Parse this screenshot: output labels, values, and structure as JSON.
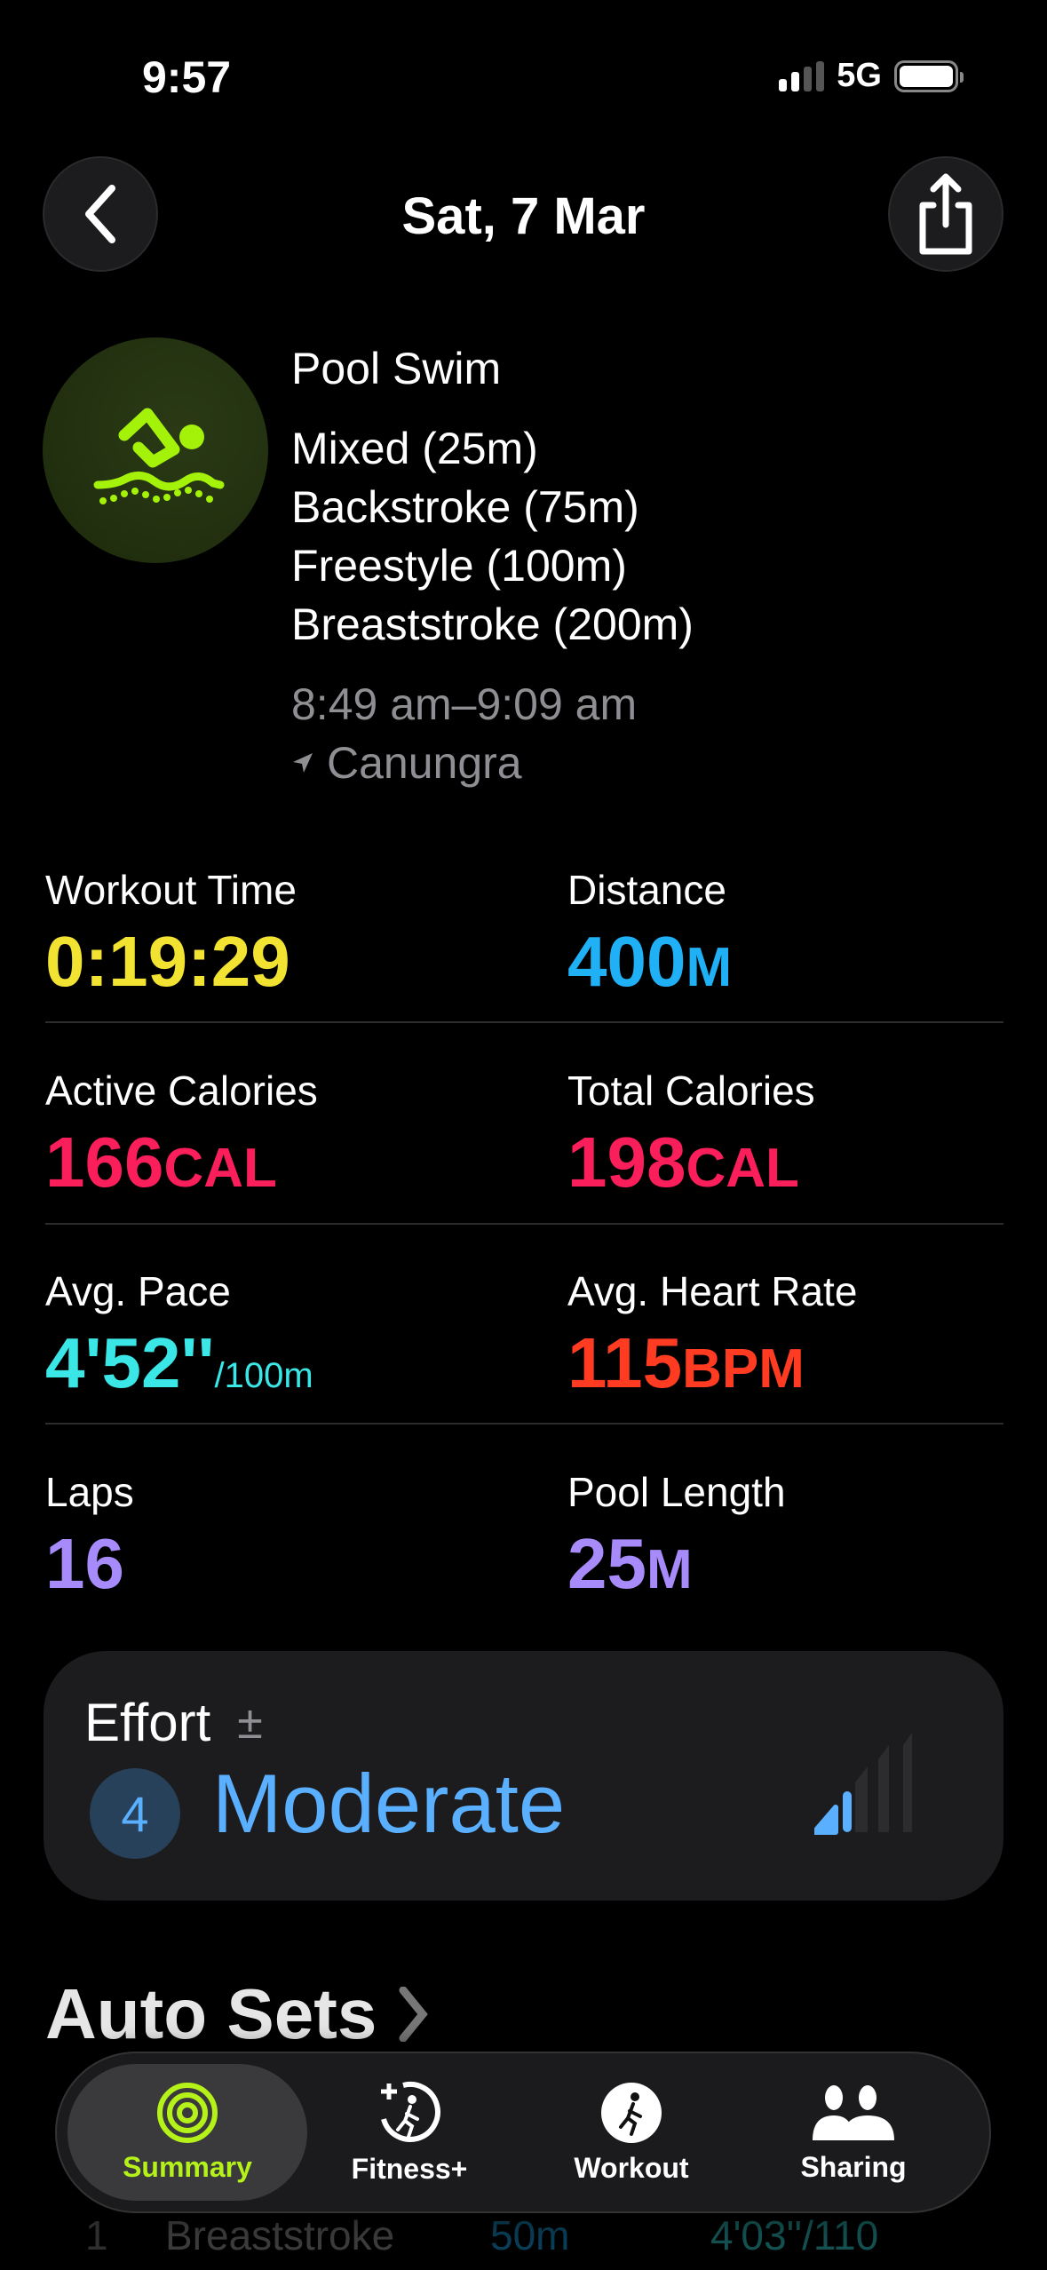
{
  "status_bar": {
    "time": "9:57",
    "network": "5G"
  },
  "header": {
    "title": "Sat, 7 Mar",
    "back_icon": "chevron-left-icon",
    "share_icon": "share-icon"
  },
  "workout": {
    "type": "Pool Swim",
    "icon": "pool-swim-icon",
    "strokes": [
      "Mixed (25m)",
      "Backstroke (75m)",
      "Freestyle (100m)",
      "Breaststroke (200m)"
    ],
    "time_range": "8:49 am–9:09 am",
    "location": "Canungra"
  },
  "stats": [
    {
      "label": "Workout Time",
      "value": "0:19:29",
      "unit": "",
      "color": "#f2e332"
    },
    {
      "label": "Distance",
      "value": "400",
      "unit": "M",
      "color": "#1fb0f5"
    },
    {
      "label": "Active Calories",
      "value": "166",
      "unit": "CAL",
      "color": "#fa1e5a"
    },
    {
      "label": "Total Calories",
      "value": "198",
      "unit": "CAL",
      "color": "#fa1e5a"
    },
    {
      "label": "Avg. Pace",
      "value": "4'52''",
      "unit": "/100m",
      "color": "#3ae6e6"
    },
    {
      "label": "Avg. Heart Rate",
      "value": "115",
      "unit": "BPM",
      "color": "#ff3b22"
    },
    {
      "label": "Laps",
      "value": "16",
      "unit": "",
      "color": "#a78bfa"
    },
    {
      "label": "Pool Length",
      "value": "25",
      "unit": "M",
      "color": "#a78bfa"
    }
  ],
  "effort": {
    "label": "Effort",
    "adjust_symbol": "±",
    "level": "4",
    "level_name": "Moderate",
    "level_fraction": 0.4,
    "color": "#5ab0ff"
  },
  "auto_sets": {
    "title": "Auto Sets",
    "row": {
      "index": "1",
      "stroke": "Breaststroke",
      "distance": "50m",
      "pace": "4'03''/110"
    }
  },
  "tabs": [
    {
      "label": "Summary",
      "icon": "activity-rings-icon",
      "selected": true
    },
    {
      "label": "Fitness+",
      "icon": "fitness-plus-icon"
    },
    {
      "label": "Workout",
      "icon": "workout-runner-icon"
    },
    {
      "label": "Sharing",
      "icon": "sharing-people-icon"
    }
  ],
  "accent": "#b5f21a"
}
